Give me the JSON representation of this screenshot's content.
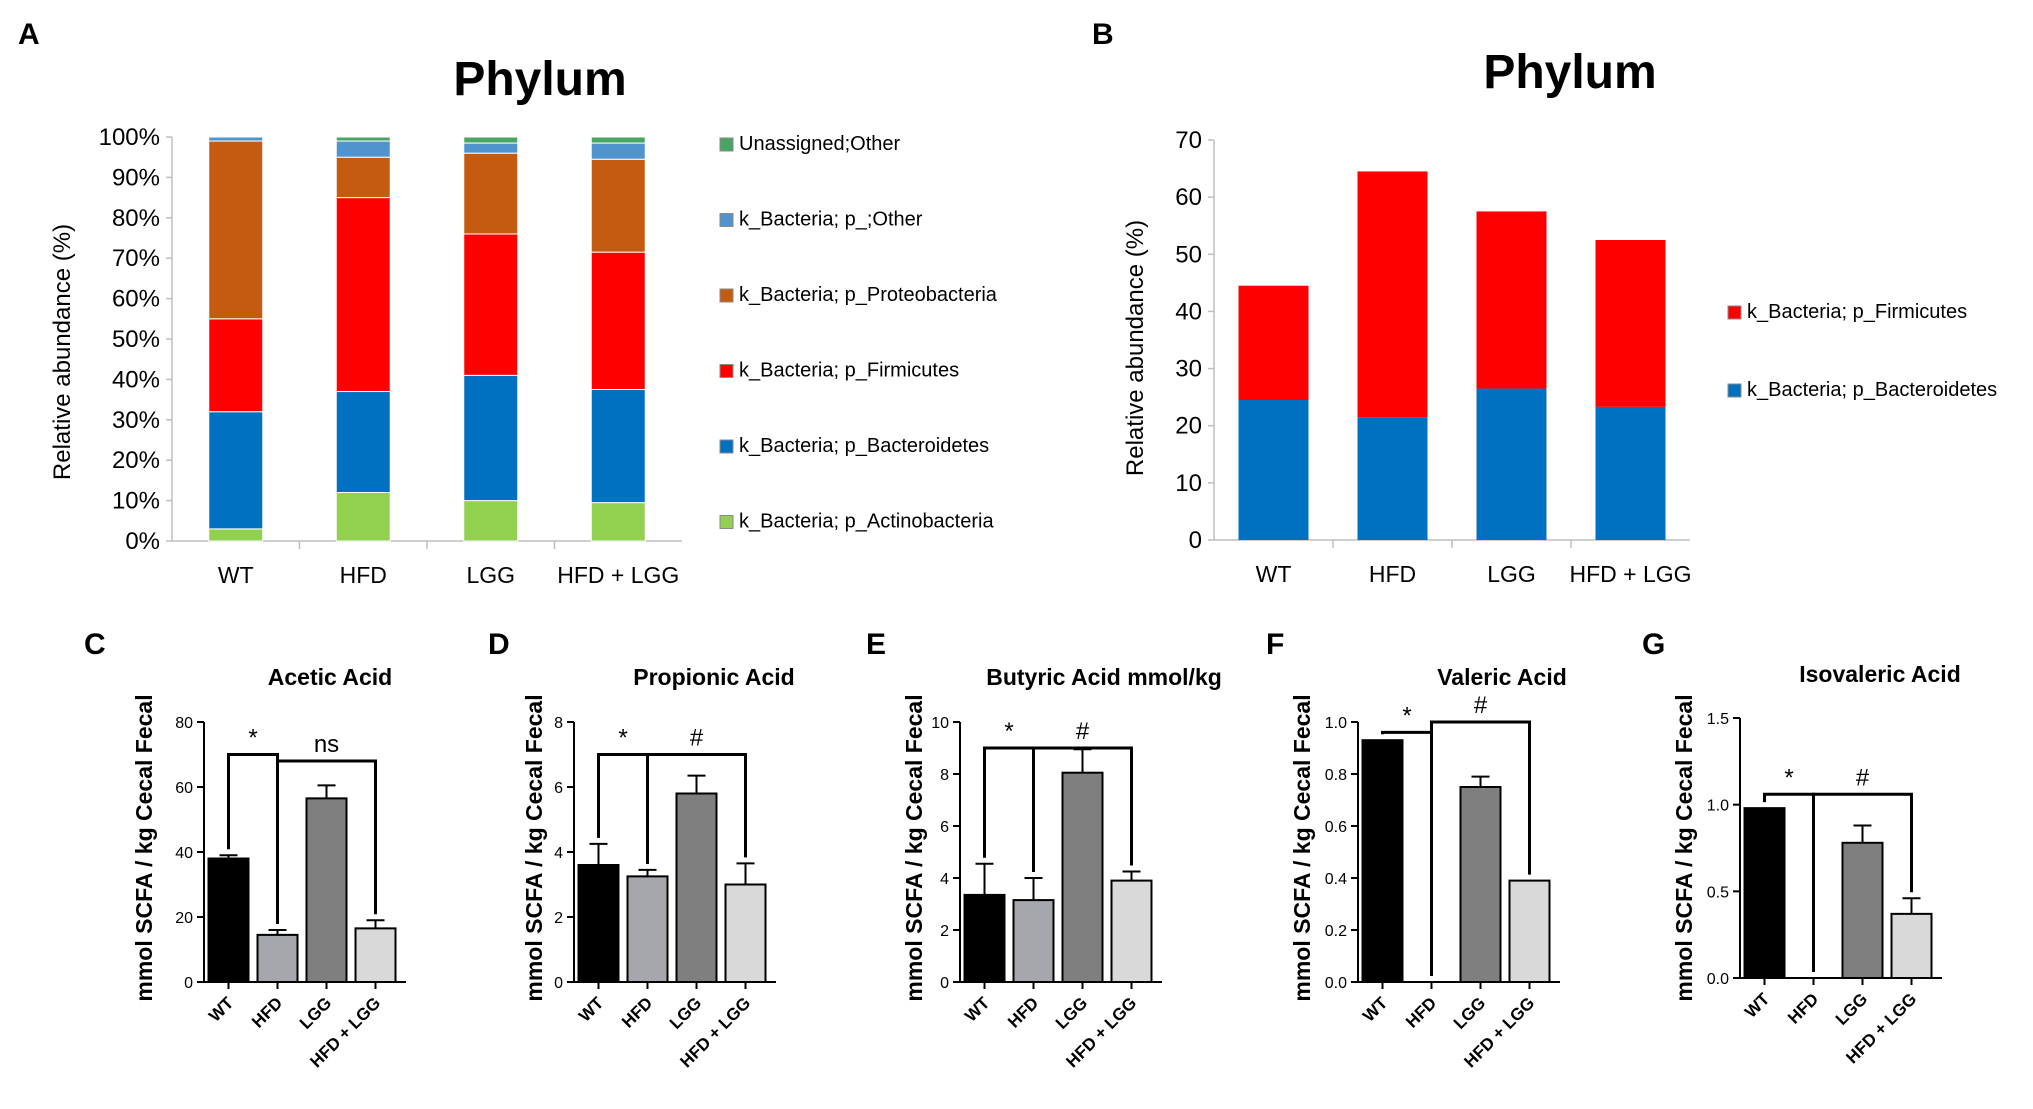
{
  "chart_data": [
    {
      "panel": "A",
      "type": "bar",
      "stacked": true,
      "title": "Phylum",
      "ylabel": "Relative abundance (%)",
      "ylim": [
        0,
        100
      ],
      "yticks": [
        "0%",
        "10%",
        "20%",
        "30%",
        "40%",
        "50%",
        "60%",
        "70%",
        "80%",
        "90%",
        "100%"
      ],
      "categories": [
        "WT",
        "HFD",
        "LGG",
        "HFD + LGG"
      ],
      "series": [
        {
          "name": "k_Bacteria; p_Actinobacteria",
          "color": "#92d050",
          "values": [
            3,
            12,
            10,
            9.5
          ]
        },
        {
          "name": "k_Bacteria; p_Bacteroidetes",
          "color": "#0070c0",
          "values": [
            29,
            25,
            31,
            28
          ]
        },
        {
          "name": "k_Bacteria; p_Firmicutes",
          "color": "#ff0000",
          "values": [
            23,
            48,
            35,
            34
          ]
        },
        {
          "name": "k_Bacteria; p_Proteobacteria",
          "color": "#c55a11",
          "values": [
            44,
            10,
            20,
            23
          ]
        },
        {
          "name": "k_Bacteria; p_;Other",
          "color": "#4f94cd",
          "values": [
            1,
            4,
            2.5,
            4
          ]
        },
        {
          "name": "Unassigned;Other",
          "color": "#4aa564",
          "values": [
            0,
            1,
            1.5,
            1.5
          ]
        }
      ],
      "legend_order": [
        "Unassigned;Other",
        "k_Bacteria; p_;Other",
        "k_Bacteria; p_Proteobacteria",
        "k_Bacteria; p_Firmicutes",
        "k_Bacteria; p_Bacteroidetes",
        "k_Bacteria; p_Actinobacteria"
      ],
      "legend_position": "right"
    },
    {
      "panel": "B",
      "type": "bar",
      "stacked": true,
      "title": "Phylum",
      "ylabel": "Relative abundance (%)",
      "ylim": [
        0,
        70
      ],
      "yticks": [
        "0",
        "10",
        "20",
        "30",
        "40",
        "50",
        "60",
        "70"
      ],
      "categories": [
        "WT",
        "HFD",
        "LGG",
        "HFD + LGG"
      ],
      "series": [
        {
          "name": "k_Bacteria; p_Bacteroidetes",
          "color": "#0070c0",
          "values": [
            24.5,
            21.5,
            26.5,
            23.3
          ]
        },
        {
          "name": "k_Bacteria; p_Firmicutes",
          "color": "#ff0000",
          "values": [
            20,
            43,
            31,
            29.2
          ]
        }
      ],
      "legend_order": [
        "k_Bacteria; p_Firmicutes",
        "k_Bacteria; p_Bacteroidetes"
      ],
      "legend_position": "right"
    },
    {
      "panel": "C",
      "type": "bar",
      "title": "Acetic Acid",
      "ylabel": "mmol SCFA / kg Cecal Fecal",
      "categories": [
        "WT",
        "HFD",
        "LGG",
        "HFD + LGG"
      ],
      "values": [
        38,
        14.5,
        56.5,
        16.5
      ],
      "errors": [
        1,
        1.5,
        4,
        2.5
      ],
      "ylim": [
        0,
        80
      ],
      "yticks": [
        "0",
        "20",
        "40",
        "60",
        "80"
      ],
      "colors": [
        "#000000",
        "#a6a6ad",
        "#7f7f7f",
        "#d9d9d9"
      ],
      "brackets": [
        {
          "from": 0,
          "to": 1,
          "label": "*",
          "level": 70
        },
        {
          "from": 1,
          "to": 3,
          "label": "ns",
          "level": 68
        }
      ]
    },
    {
      "panel": "D",
      "type": "bar",
      "title": "Propionic Acid",
      "ylabel": "mmol SCFA / kg Cecal Fecal",
      "categories": [
        "WT",
        "HFD",
        "LGG",
        "HFD + LGG"
      ],
      "values": [
        3.6,
        3.25,
        5.8,
        3.0
      ],
      "errors": [
        0.65,
        0.2,
        0.55,
        0.65
      ],
      "ylim": [
        0,
        8
      ],
      "yticks": [
        "0",
        "2",
        "4",
        "6",
        "8"
      ],
      "colors": [
        "#000000",
        "#a6a6ad",
        "#7f7f7f",
        "#d9d9d9"
      ],
      "brackets": [
        {
          "from": 0,
          "to": 1,
          "label": "*",
          "level": 7.0
        },
        {
          "from": 1,
          "to": 3,
          "label": "#",
          "level": 7.0
        }
      ]
    },
    {
      "panel": "E",
      "type": "bar",
      "title": "Butyric Acid mmol/kg",
      "ylabel": "mmol SCFA / kg Cecal Fecal",
      "categories": [
        "WT",
        "HFD",
        "LGG",
        "HFD + LGG"
      ],
      "values": [
        3.35,
        3.15,
        8.05,
        3.9
      ],
      "errors": [
        1.2,
        0.85,
        0.9,
        0.35
      ],
      "ylim": [
        0,
        10
      ],
      "yticks": [
        "0",
        "2",
        "4",
        "6",
        "8",
        "10"
      ],
      "colors": [
        "#000000",
        "#a6a6ad",
        "#7f7f7f",
        "#d9d9d9"
      ],
      "brackets": [
        {
          "from": 0,
          "to": 1,
          "label": "*",
          "level": 9.0
        },
        {
          "from": 1,
          "to": 3,
          "label": "#",
          "level": 9.0
        }
      ]
    },
    {
      "panel": "F",
      "type": "bar",
      "title": "Valeric Acid",
      "ylabel": "mmol SCFA / kg Cecal Fecal",
      "categories": [
        "WT",
        "HFD",
        "LGG",
        "HFD + LGG"
      ],
      "values": [
        0.93,
        0,
        0.75,
        0.39
      ],
      "errors": [
        0,
        0,
        0.04,
        0
      ],
      "ylim": [
        0,
        1.0
      ],
      "yticks": [
        "0.0",
        "0.2",
        "0.4",
        "0.6",
        "0.8",
        "1.0"
      ],
      "colors": [
        "#000000",
        "#a6a6ad",
        "#7f7f7f",
        "#d9d9d9"
      ],
      "brackets": [
        {
          "from": 0,
          "to": 1,
          "label": "*",
          "level": 0.96
        },
        {
          "from": 1,
          "to": 3,
          "label": "#",
          "level": 1.0
        }
      ]
    },
    {
      "panel": "G",
      "type": "bar",
      "title": "Isovaleric Acid",
      "ylabel": "mmol SCFA / kg Cecal Fecal",
      "categories": [
        "WT",
        "HFD",
        "LGG",
        "HFD + LGG"
      ],
      "values": [
        0.98,
        0,
        0.78,
        0.37
      ],
      "errors": [
        0,
        0,
        0.1,
        0.09
      ],
      "ylim": [
        0,
        1.5
      ],
      "yticks": [
        "0.0",
        "0.5",
        "1.0",
        "1.5"
      ],
      "colors": [
        "#000000",
        "#a6a6ad",
        "#7f7f7f",
        "#d9d9d9"
      ],
      "brackets": [
        {
          "from": 0,
          "to": 1,
          "label": "*",
          "level": 1.06
        },
        {
          "from": 1,
          "to": 3,
          "label": "#",
          "level": 1.06
        }
      ]
    }
  ]
}
